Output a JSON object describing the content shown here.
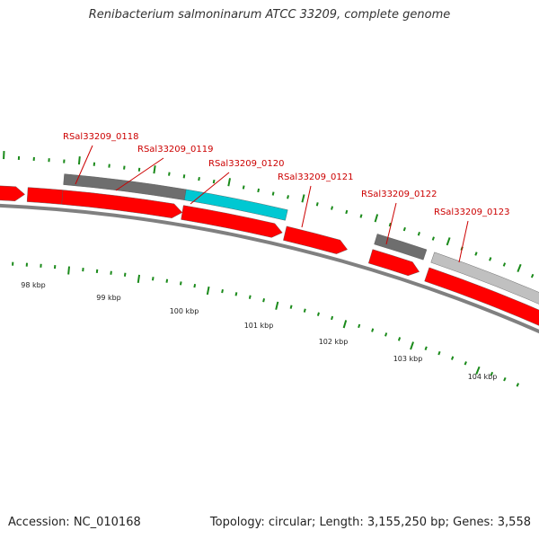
{
  "title": "Renibacterium salmoninarum ATCC 33209, complete genome",
  "footer": {
    "accession": "Accession: NC_010168",
    "summary": "Topology: circular; Length: 3,155,250 bp; Genes: 3,558"
  },
  "colors": {
    "cds_forward": "#00c8d2",
    "cds_reverse": "#ff0000",
    "other_gene": "#6e6e6e",
    "pseudo_gene": "#c0c0c0",
    "backbone": "#808080",
    "ticks": "#1a8a1a",
    "gene_label": "#cc0000"
  },
  "gene_labels": [
    {
      "id": "g118",
      "label": "RSal33209_0118"
    },
    {
      "id": "g119",
      "label": "RSal33209_0119"
    },
    {
      "id": "g120",
      "label": "RSal33209_0120"
    },
    {
      "id": "g121",
      "label": "RSal33209_0121"
    },
    {
      "id": "g122",
      "label": "RSal33209_0122"
    },
    {
      "id": "g123",
      "label": "RSal33209_0123"
    }
  ],
  "kbp_labels": [
    "98 kbp",
    "99 kbp",
    "100 kbp",
    "101 kbp",
    "102 kbp",
    "103 kbp",
    "104 kbp"
  ]
}
